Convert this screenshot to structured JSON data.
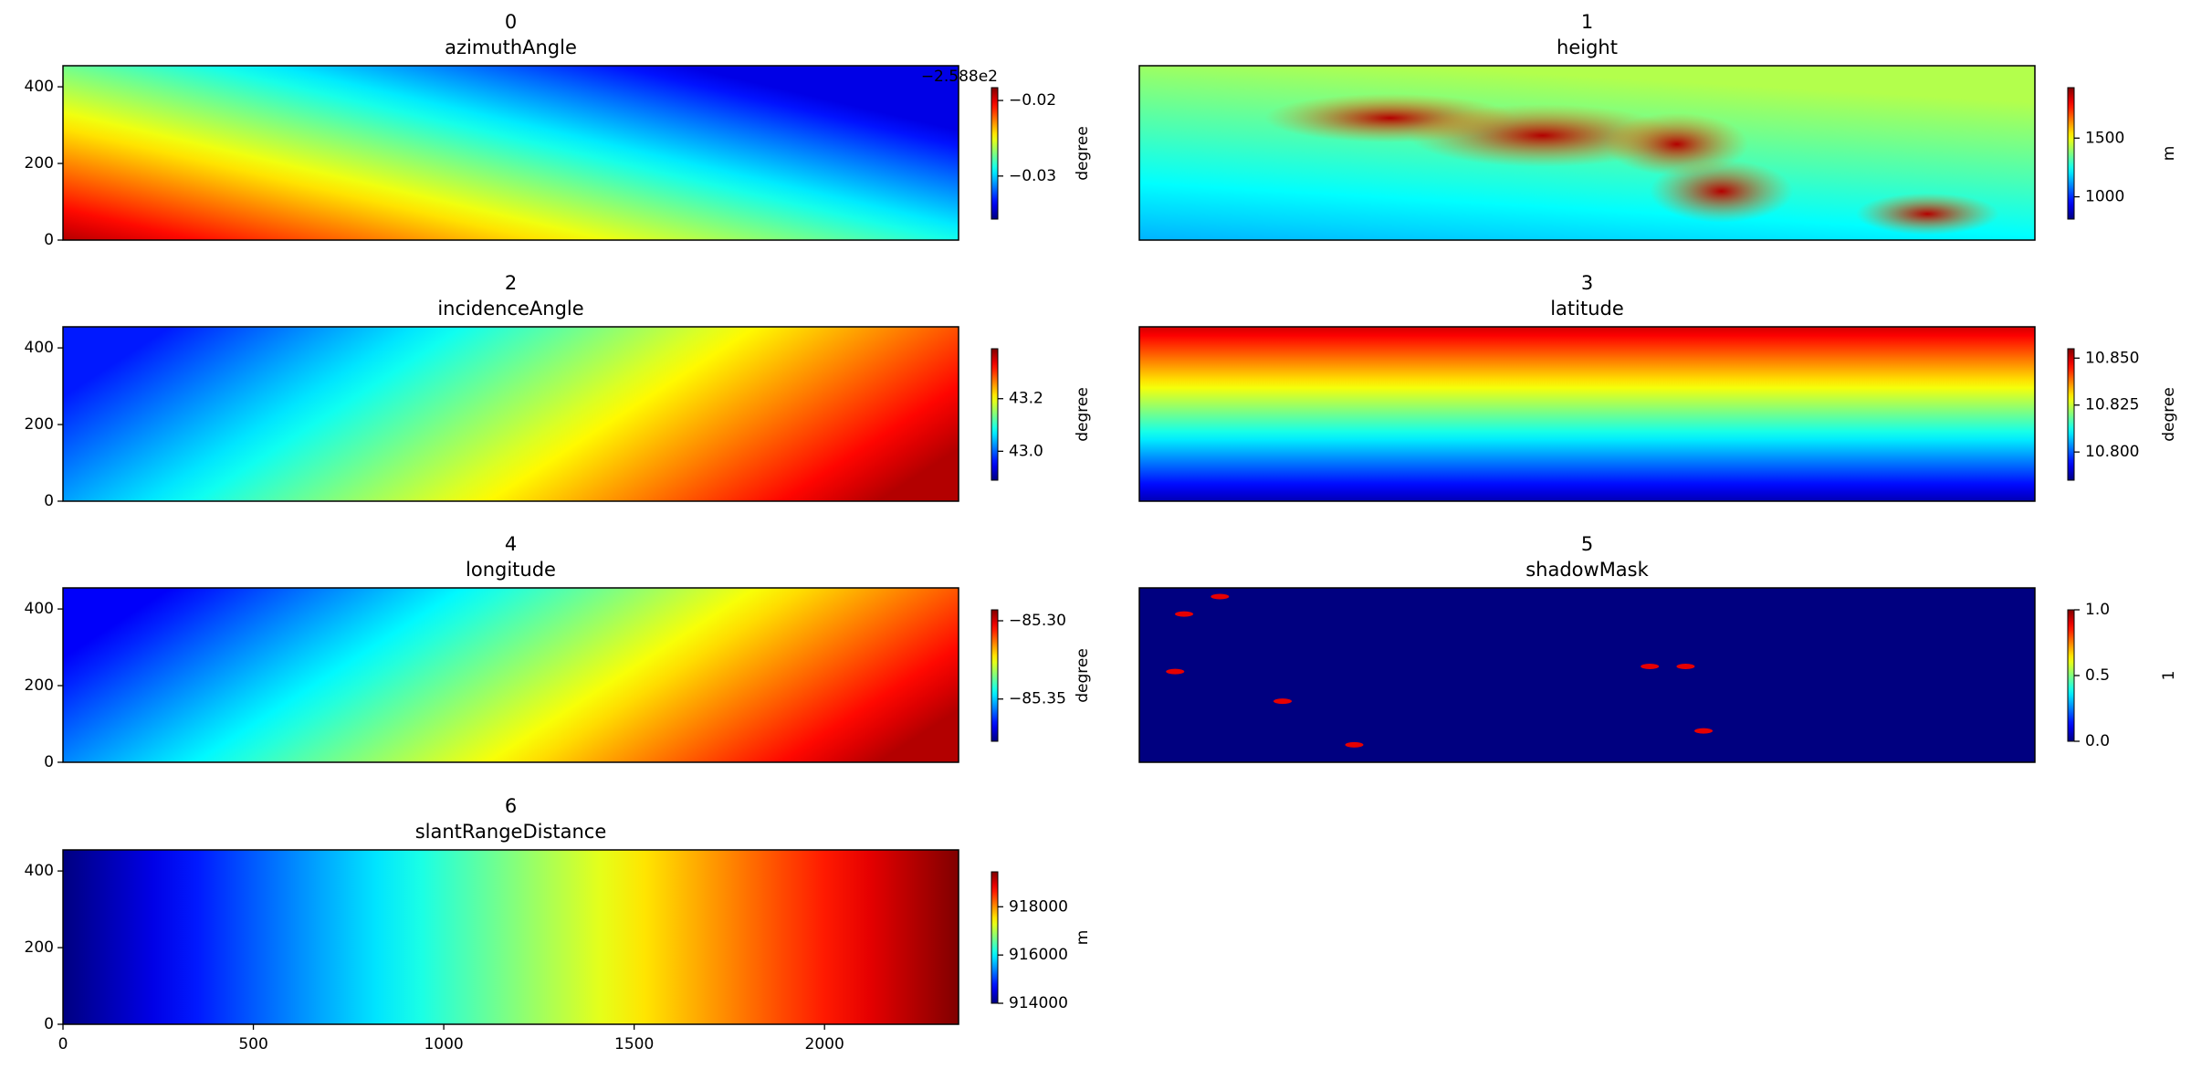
{
  "chart_data": [
    {
      "type": "heatmap",
      "title": "0",
      "subtitle": "azimuthAngle",
      "colormap": "jet",
      "xlim": [
        0,
        2352
      ],
      "ylim": [
        0,
        455
      ],
      "yticks": [
        0,
        200,
        400
      ],
      "clim": [
        -0.0357,
        -0.0183
      ],
      "cticks": [
        {
          "value": -0.02,
          "label": "−0.02"
        },
        {
          "value": -0.03,
          "label": "−0.03"
        }
      ],
      "colorbar_label": "degree",
      "offset_text": "−2.588e2"
    },
    {
      "type": "heatmap",
      "title": "1",
      "subtitle": "height",
      "colormap": "jet",
      "xlim": [
        0,
        2352
      ],
      "ylim": [
        0,
        455
      ],
      "clim": [
        810,
        1930
      ],
      "cticks": [
        1000,
        1500
      ],
      "colorbar_label": "m"
    },
    {
      "type": "heatmap",
      "title": "2",
      "subtitle": "incidenceAngle",
      "colormap": "jet",
      "xlim": [
        0,
        2352
      ],
      "ylim": [
        0,
        455
      ],
      "yticks": [
        0,
        200,
        400
      ],
      "clim": [
        42.89,
        43.39
      ],
      "cticks": [
        {
          "value": 43.0,
          "label": "43.0"
        },
        43.2
      ],
      "colorbar_label": "degree"
    },
    {
      "type": "heatmap",
      "title": "3",
      "subtitle": "latitude",
      "colormap": "jet",
      "xlim": [
        0,
        2352
      ],
      "ylim": [
        0,
        455
      ],
      "clim": [
        10.785,
        10.855
      ],
      "cticks": [
        {
          "value": 10.8,
          "label": "10.800"
        },
        10.825,
        {
          "value": 10.85,
          "label": "10.850"
        }
      ],
      "colorbar_label": "degree"
    },
    {
      "type": "heatmap",
      "title": "4",
      "subtitle": "longitude",
      "colormap": "jet",
      "xlim": [
        0,
        2352
      ],
      "ylim": [
        0,
        455
      ],
      "yticks": [
        0,
        200,
        400
      ],
      "clim": [
        -85.377,
        -85.293
      ],
      "cticks": [
        {
          "value": -85.35,
          "label": "−85.35"
        },
        {
          "value": -85.3,
          "label": "−85.30"
        }
      ],
      "colorbar_label": "degree"
    },
    {
      "type": "heatmap",
      "title": "5",
      "subtitle": "shadowMask",
      "colormap": "jet",
      "xlim": [
        0,
        2352
      ],
      "ylim": [
        0,
        455
      ],
      "clim": [
        0,
        1
      ],
      "cticks": [
        {
          "value": 0,
          "label": "0.0"
        },
        0.5,
        {
          "value": 1,
          "label": "1.0"
        }
      ],
      "colorbar_label": "1"
    },
    {
      "type": "heatmap",
      "title": "6",
      "subtitle": "slantRangeDistance",
      "colormap": "jet",
      "xlim": [
        0,
        2352
      ],
      "ylim": [
        0,
        455
      ],
      "yticks": [
        0,
        200,
        400
      ],
      "xticks": [
        0,
        500,
        1000,
        1500,
        2000
      ],
      "clim": [
        914000,
        919450
      ],
      "cticks": [
        914000,
        916000,
        918000
      ],
      "colorbar_label": "m"
    }
  ]
}
